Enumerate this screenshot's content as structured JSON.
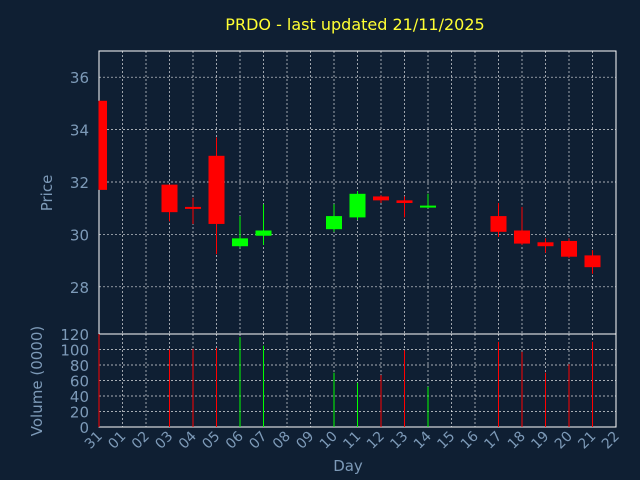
{
  "chart_data": {
    "type": "candlestick",
    "title": "PRDO - last updated 21/11/2025",
    "xlabel": "Day",
    "ylabel": "Price",
    "volume_label": "Volume (0000)",
    "x_tick_labels": [
      "31",
      "01",
      "02",
      "03",
      "04",
      "05",
      "06",
      "07",
      "08",
      "09",
      "10",
      "11",
      "12",
      "13",
      "14",
      "15",
      "16",
      "17",
      "18",
      "19",
      "20",
      "21",
      "22"
    ],
    "price_ticks": [
      28,
      30,
      32,
      34,
      36
    ],
    "price_range": [
      26.2,
      37.0
    ],
    "volume_ticks": [
      0,
      20,
      40,
      60,
      80,
      100,
      120
    ],
    "volume_range": [
      0,
      120
    ],
    "grid": true,
    "colors": {
      "up": "#00ff00",
      "down": "#ff0000",
      "background": "#0f1f33"
    },
    "candles": [
      {
        "day": 0,
        "open": 35.1,
        "high": 35.1,
        "low": 31.7,
        "close": 31.7,
        "volume": 125
      },
      {
        "day": 3,
        "open": 31.9,
        "high": 31.9,
        "low": 30.5,
        "close": 30.85,
        "volume": 100
      },
      {
        "day": 4,
        "open": 31.05,
        "high": 31.4,
        "low": 30.4,
        "close": 31.0,
        "volume": 101
      },
      {
        "day": 5,
        "open": 33.0,
        "high": 33.7,
        "low": 29.25,
        "close": 30.4,
        "volume": 102
      },
      {
        "day": 6,
        "open": 29.55,
        "high": 30.7,
        "low": 29.5,
        "close": 29.85,
        "volume": 116
      },
      {
        "day": 7,
        "open": 29.95,
        "high": 31.15,
        "low": 29.6,
        "close": 30.15,
        "volume": 105
      },
      {
        "day": 10,
        "open": 30.2,
        "high": 31.15,
        "low": 30.1,
        "close": 30.7,
        "volume": 70
      },
      {
        "day": 11,
        "open": 30.65,
        "high": 31.65,
        "low": 30.55,
        "close": 31.55,
        "volume": 57
      },
      {
        "day": 12,
        "open": 31.45,
        "high": 31.5,
        "low": 31.2,
        "close": 31.3,
        "volume": 67
      },
      {
        "day": 13,
        "open": 31.3,
        "high": 31.45,
        "low": 30.65,
        "close": 31.2,
        "volume": 99
      },
      {
        "day": 14,
        "open": 31.05,
        "high": 31.55,
        "low": 31.0,
        "close": 31.1,
        "volume": 52
      },
      {
        "day": 17,
        "open": 30.7,
        "high": 31.2,
        "low": 29.9,
        "close": 30.1,
        "volume": 110
      },
      {
        "day": 18,
        "open": 30.15,
        "high": 31.05,
        "low": 29.6,
        "close": 29.65,
        "volume": 97
      },
      {
        "day": 19,
        "open": 29.7,
        "high": 29.85,
        "low": 29.3,
        "close": 29.55,
        "volume": 70
      },
      {
        "day": 20,
        "open": 29.75,
        "high": 29.85,
        "low": 29.1,
        "close": 29.15,
        "volume": 81
      },
      {
        "day": 21,
        "open": 29.2,
        "high": 29.4,
        "low": 28.5,
        "close": 28.75,
        "volume": 110
      }
    ]
  }
}
